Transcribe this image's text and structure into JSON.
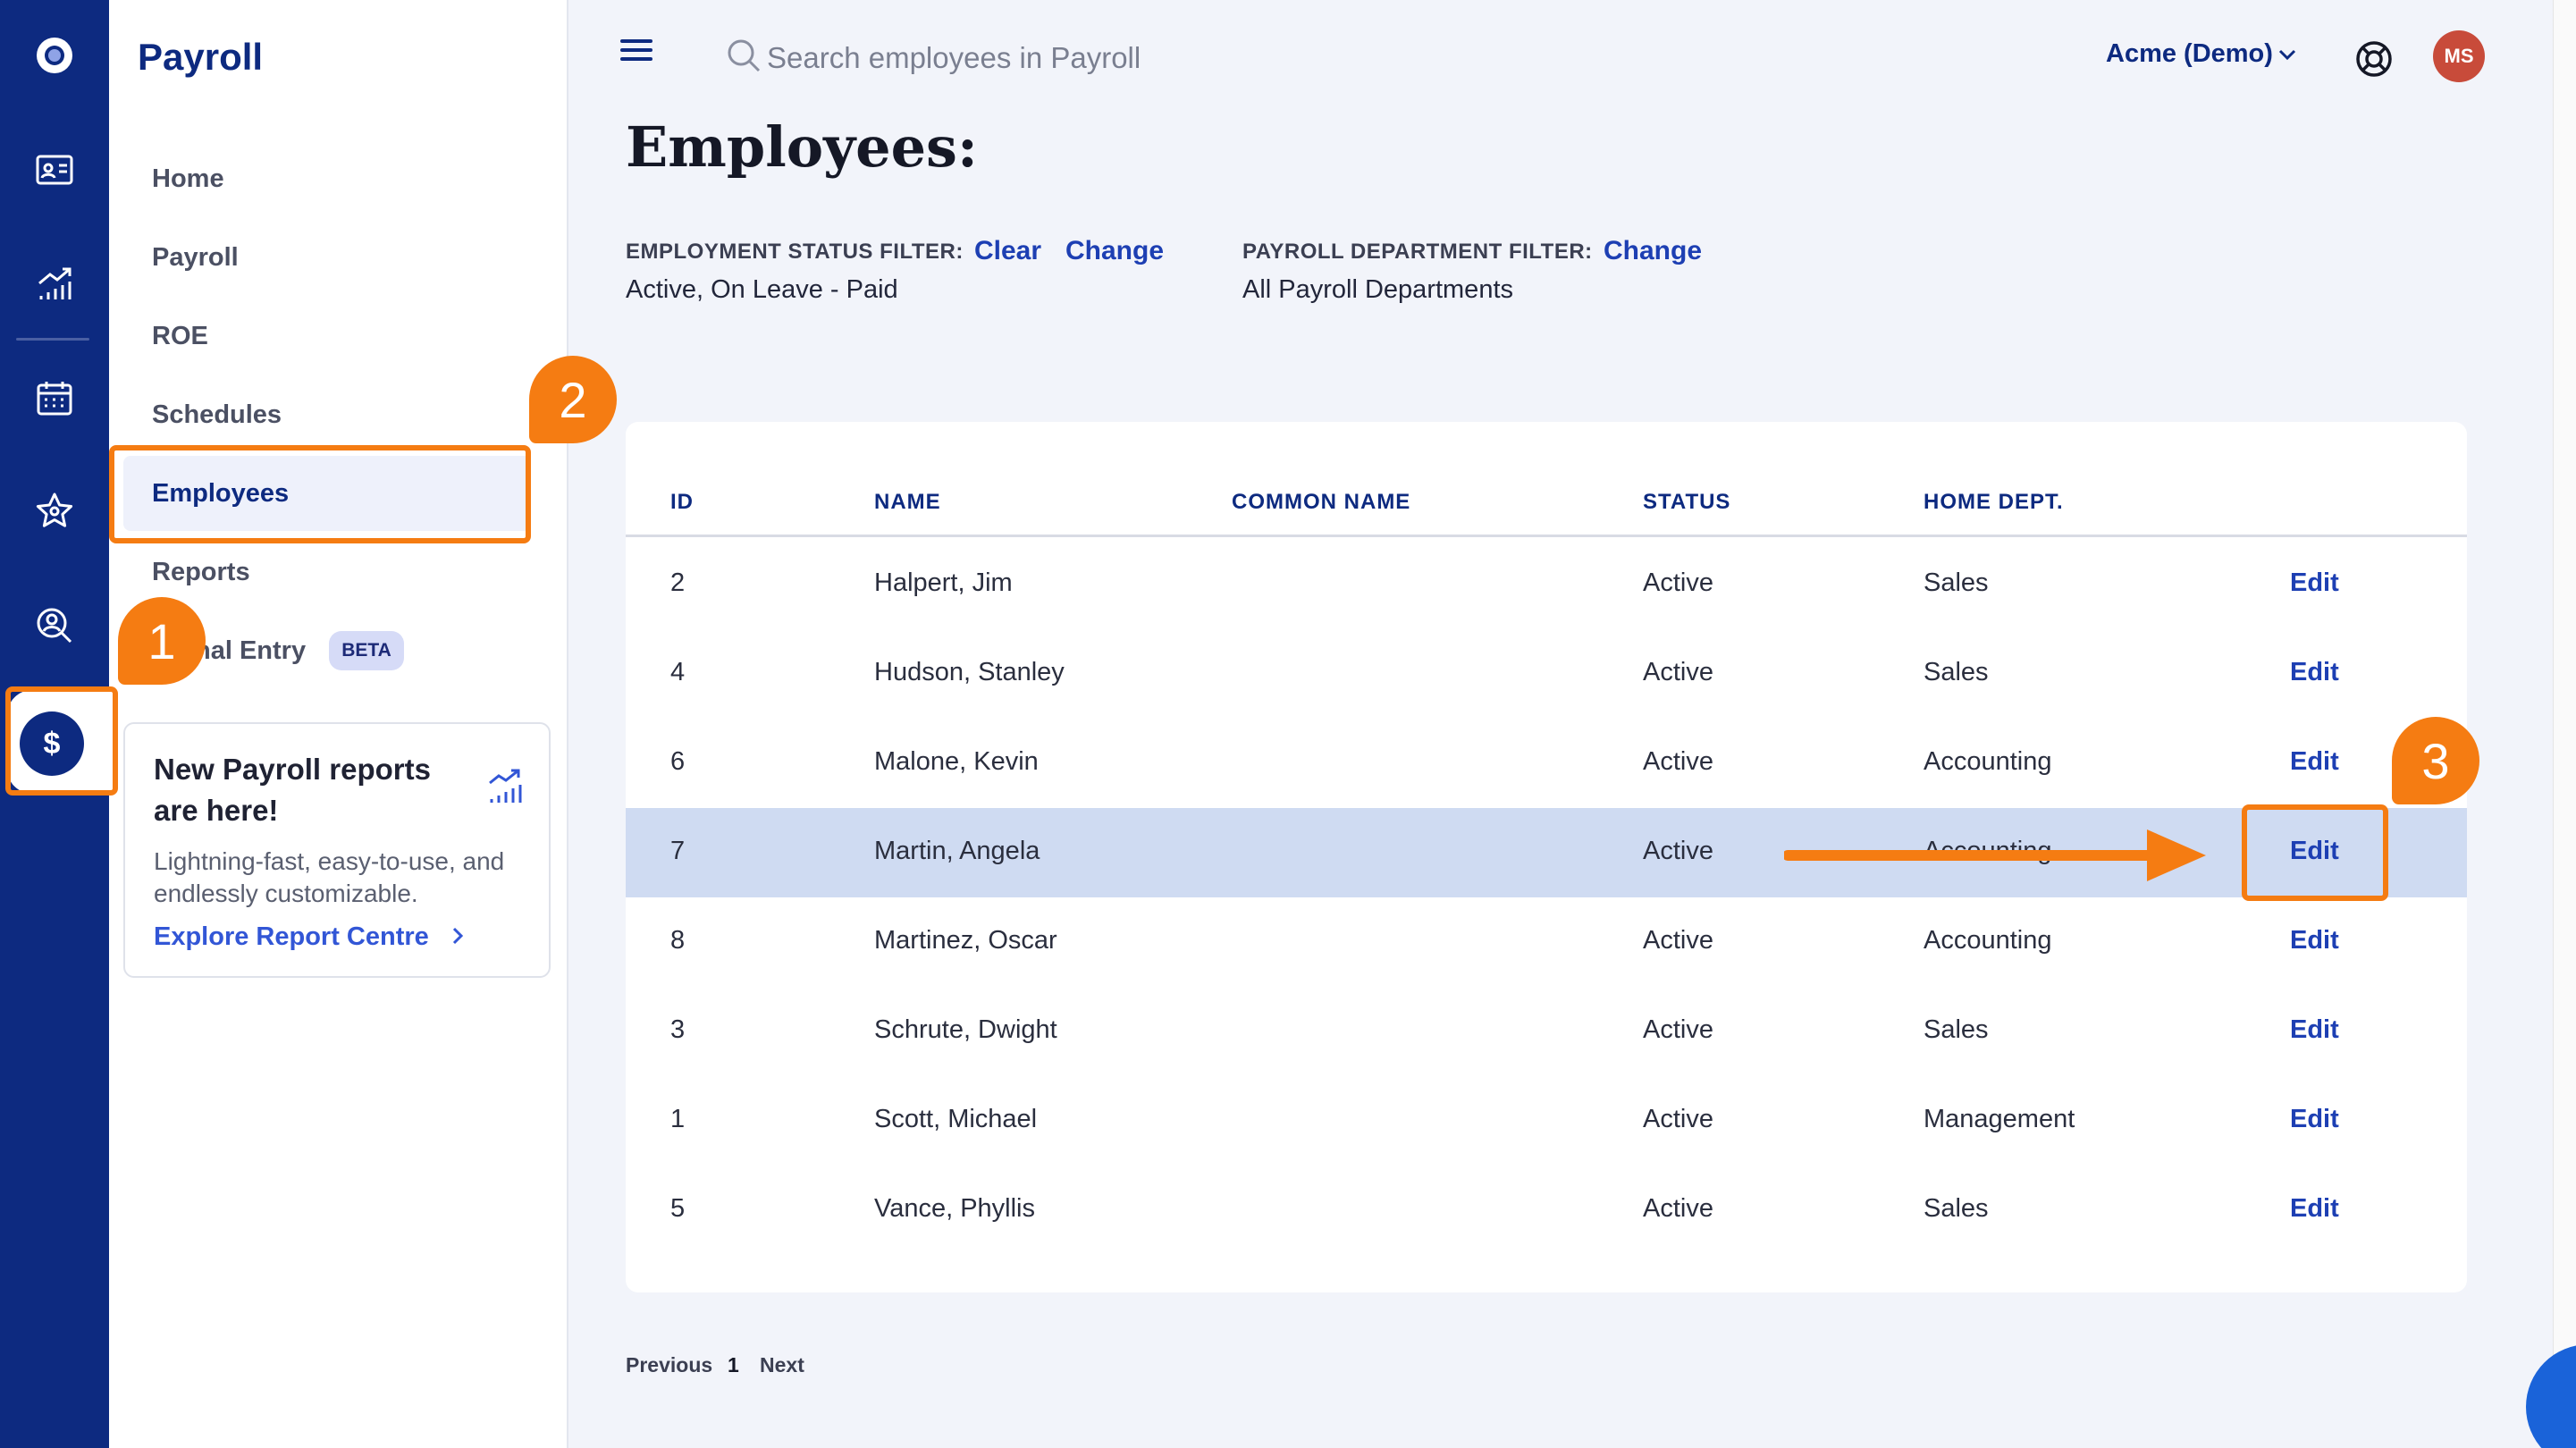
{
  "app": {
    "title": "Payroll"
  },
  "rail": {
    "icons": [
      "logo-icon",
      "id-card-icon",
      "chart-icon",
      "calendar-icon",
      "star-icon",
      "person-search-icon",
      "dollar-icon"
    ],
    "active": "dollar-icon",
    "active_glyph": "$"
  },
  "sidebar": {
    "items": [
      {
        "label": "Home"
      },
      {
        "label": "Payroll"
      },
      {
        "label": "ROE"
      },
      {
        "label": "Schedules"
      },
      {
        "label": "Employees",
        "active": true
      },
      {
        "label": "Reports"
      },
      {
        "label": "nal Entry",
        "badge": "BETA"
      }
    ],
    "promo": {
      "title": "New Payroll reports are here!",
      "text": "Lightning-fast, easy-to-use, and endlessly customizable.",
      "link": "Explore Report Centre"
    }
  },
  "topbar": {
    "search_placeholder": "Search employees in Payroll",
    "org": "Acme (Demo)",
    "avatar_initials": "MS"
  },
  "page": {
    "title": "Employees:",
    "filters": {
      "status_label": "EMPLOYMENT STATUS FILTER:",
      "status_clear": "Clear",
      "status_change": "Change",
      "status_value": "Active, On Leave - Paid",
      "dept_label": "PAYROLL DEPARTMENT FILTER:",
      "dept_change": "Change",
      "dept_value": "All Payroll Departments"
    }
  },
  "table": {
    "columns": [
      "ID",
      "NAME",
      "COMMON NAME",
      "STATUS",
      "HOME DEPT."
    ],
    "rows": [
      {
        "id": "2",
        "name": "Halpert, Jim",
        "common": "",
        "status": "Active",
        "dept": "Sales",
        "action": "Edit"
      },
      {
        "id": "4",
        "name": "Hudson, Stanley",
        "common": "",
        "status": "Active",
        "dept": "Sales",
        "action": "Edit"
      },
      {
        "id": "6",
        "name": "Malone, Kevin",
        "common": "",
        "status": "Active",
        "dept": "Accounting",
        "action": "Edit"
      },
      {
        "id": "7",
        "name": "Martin, Angela",
        "common": "",
        "status": "Active",
        "dept": "Accounting",
        "action": "Edit",
        "highlighted": true
      },
      {
        "id": "8",
        "name": "Martinez, Oscar",
        "common": "",
        "status": "Active",
        "dept": "Accounting",
        "action": "Edit"
      },
      {
        "id": "3",
        "name": "Schrute, Dwight",
        "common": "",
        "status": "Active",
        "dept": "Sales",
        "action": "Edit"
      },
      {
        "id": "1",
        "name": "Scott, Michael",
        "common": "",
        "status": "Active",
        "dept": "Management",
        "action": "Edit"
      },
      {
        "id": "5",
        "name": "Vance, Phyllis",
        "common": "",
        "status": "Active",
        "dept": "Sales",
        "action": "Edit"
      }
    ]
  },
  "pagination": {
    "previous": "Previous",
    "current": "1",
    "next": "Next"
  },
  "annotations": {
    "step1": "1",
    "step2": "2",
    "step3": "3",
    "color": "#f57c12"
  },
  "colors": {
    "brand": "#0d2a80",
    "link": "#1d3fb3",
    "row_highlight": "#cfdbf2",
    "accent": "#f57c12"
  }
}
